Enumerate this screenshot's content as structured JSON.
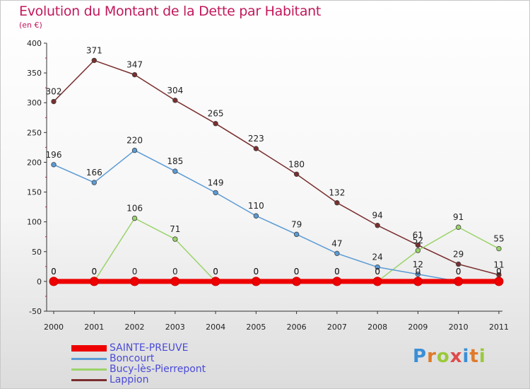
{
  "title": "Evolution du Montant de la Dette par Habitant",
  "unit": "(en €)",
  "logo": {
    "text": "Proxiti",
    "letters": [
      {
        "ch": "P",
        "color": "#3a8fd6"
      },
      {
        "ch": "r",
        "color": "#e07a2a"
      },
      {
        "ch": "o",
        "color": "#9bc93a"
      },
      {
        "ch": "x",
        "color": "#e04a4a"
      },
      {
        "ch": "i",
        "color": "#3a8fd6"
      },
      {
        "ch": "t",
        "color": "#e07a2a"
      },
      {
        "ch": "i",
        "color": "#9bc93a"
      }
    ]
  },
  "chart_data": {
    "type": "line",
    "title": "Evolution du Montant de la Dette par Habitant",
    "ylabel": "(en €)",
    "xlabel": "",
    "x": [
      "2000",
      "2001",
      "2002",
      "2003",
      "2004",
      "2005",
      "2006",
      "2007",
      "2008",
      "2009",
      "2010",
      "2011"
    ],
    "ylim": [
      -50,
      400
    ],
    "yticks": [
      -50,
      0,
      50,
      100,
      150,
      200,
      250,
      300,
      350,
      400
    ],
    "grid": false,
    "legend_position": "bottom-left",
    "series": [
      {
        "name": "SAINTE-PREUVE",
        "color": "#ee0000",
        "values": [
          0,
          0,
          0,
          0,
          0,
          0,
          0,
          0,
          0,
          0,
          0,
          0
        ],
        "labels": [
          "0",
          "0",
          "0",
          "0",
          "0",
          "0",
          "0",
          "0",
          "0",
          "0",
          "0",
          "0"
        ]
      },
      {
        "name": "Boncourt",
        "color": "#5b9bd5",
        "values": [
          196,
          166,
          220,
          185,
          149,
          110,
          79,
          47,
          24,
          12,
          0,
          0
        ],
        "labels": [
          "196",
          "166",
          "220",
          "185",
          "149",
          "110",
          "79",
          "47",
          "24",
          "12",
          "0",
          "0"
        ]
      },
      {
        "name": "Bucy-lès-Pierrepont",
        "color": "#9bd36a",
        "values": [
          0,
          0,
          106,
          71,
          0,
          0,
          0,
          0,
          0,
          52,
          91,
          55
        ],
        "labels": [
          "0",
          "0",
          "106",
          "71",
          "0",
          "0",
          "0",
          "0",
          "0",
          "52",
          "91",
          "55"
        ]
      },
      {
        "name": "Lappion",
        "color": "#7a2e2e",
        "values": [
          302,
          371,
          347,
          304,
          265,
          223,
          180,
          132,
          94,
          61,
          29,
          11
        ],
        "labels": [
          "302",
          "371",
          "347",
          "304",
          "265",
          "223",
          "180",
          "132",
          "94",
          "61",
          "29",
          "11"
        ]
      }
    ]
  }
}
